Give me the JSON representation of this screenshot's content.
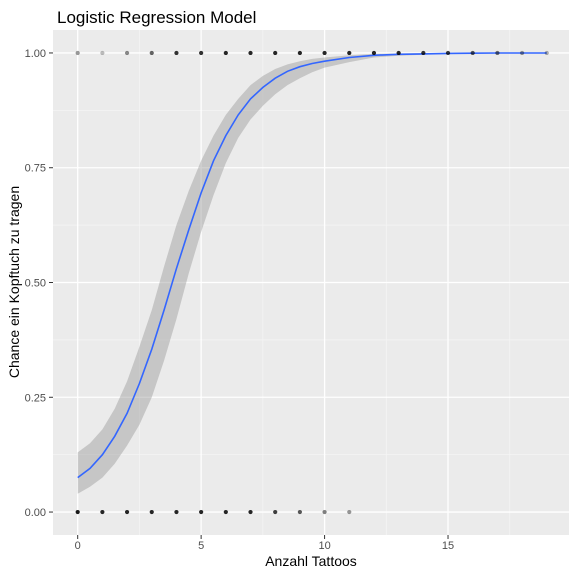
{
  "chart_data": {
    "type": "scatter",
    "title": "Logistic Regression Model",
    "xlabel": "Anzahl Tattoos",
    "ylabel": "Chance ein Kopftuch zu tragen",
    "xlim": [
      -1,
      19.9
    ],
    "ylim": [
      -0.05,
      1.05
    ],
    "x_ticks": [
      0,
      5,
      10,
      15
    ],
    "x_tick_labels": [
      "0",
      "5",
      "10",
      "15"
    ],
    "y_ticks": [
      0,
      0.25,
      0.5,
      0.75,
      1
    ],
    "y_tick_labels": [
      "0.00",
      "0.25",
      "0.50",
      "0.75",
      "1.00"
    ],
    "grid": true,
    "series": [
      {
        "kind": "points",
        "color": "#000000",
        "x": [
          0,
          1,
          2,
          3,
          4,
          5,
          6,
          7,
          8,
          9,
          10,
          11,
          0,
          1,
          2,
          3,
          4,
          5,
          6,
          7,
          8,
          9,
          10,
          11,
          12,
          13,
          14,
          15,
          16,
          17,
          18,
          19
        ],
        "y": [
          0,
          0,
          0,
          0,
          0,
          0,
          0,
          0,
          0,
          0,
          0,
          0,
          1,
          1,
          1,
          1,
          1,
          1,
          1,
          1,
          1,
          1,
          1,
          1,
          1,
          1,
          1,
          1,
          1,
          1,
          1,
          1
        ],
        "alpha": [
          0.9,
          0.85,
          0.85,
          0.85,
          0.85,
          0.85,
          0.85,
          0.85,
          0.75,
          0.65,
          0.5,
          0.4,
          0.4,
          0.25,
          0.45,
          0.6,
          0.8,
          0.8,
          0.85,
          0.85,
          0.85,
          0.85,
          0.85,
          0.85,
          0.85,
          0.85,
          0.8,
          0.75,
          0.65,
          0.55,
          0.4,
          0.3
        ]
      },
      {
        "kind": "fit",
        "color": "#3366FF",
        "band_color": "#999999",
        "x": [
          0,
          0.5,
          1,
          1.5,
          2,
          2.5,
          3,
          3.5,
          4,
          4.5,
          5,
          5.5,
          6,
          6.5,
          7,
          7.5,
          8,
          8.5,
          9,
          9.5,
          10,
          11,
          12,
          13,
          14,
          15,
          16,
          17,
          18,
          19
        ],
        "y": [
          0.075,
          0.095,
          0.125,
          0.165,
          0.215,
          0.28,
          0.355,
          0.44,
          0.53,
          0.615,
          0.695,
          0.765,
          0.82,
          0.865,
          0.9,
          0.925,
          0.945,
          0.96,
          0.97,
          0.977,
          0.982,
          0.99,
          0.995,
          0.997,
          0.998,
          0.999,
          0.9995,
          1,
          1,
          1
        ],
        "ymin": [
          0.04,
          0.055,
          0.075,
          0.105,
          0.145,
          0.19,
          0.25,
          0.33,
          0.42,
          0.52,
          0.61,
          0.69,
          0.76,
          0.815,
          0.855,
          0.885,
          0.91,
          0.93,
          0.945,
          0.958,
          0.968,
          0.98,
          0.99,
          0.994,
          0.996,
          0.998,
          0.999,
          0.9995,
          1,
          1
        ],
        "ymax": [
          0.13,
          0.15,
          0.18,
          0.225,
          0.285,
          0.36,
          0.44,
          0.535,
          0.625,
          0.7,
          0.765,
          0.82,
          0.865,
          0.9,
          0.93,
          0.95,
          0.965,
          0.975,
          0.982,
          0.987,
          0.99,
          0.995,
          0.998,
          0.999,
          1,
          1,
          1,
          1,
          1,
          1
        ]
      }
    ]
  }
}
